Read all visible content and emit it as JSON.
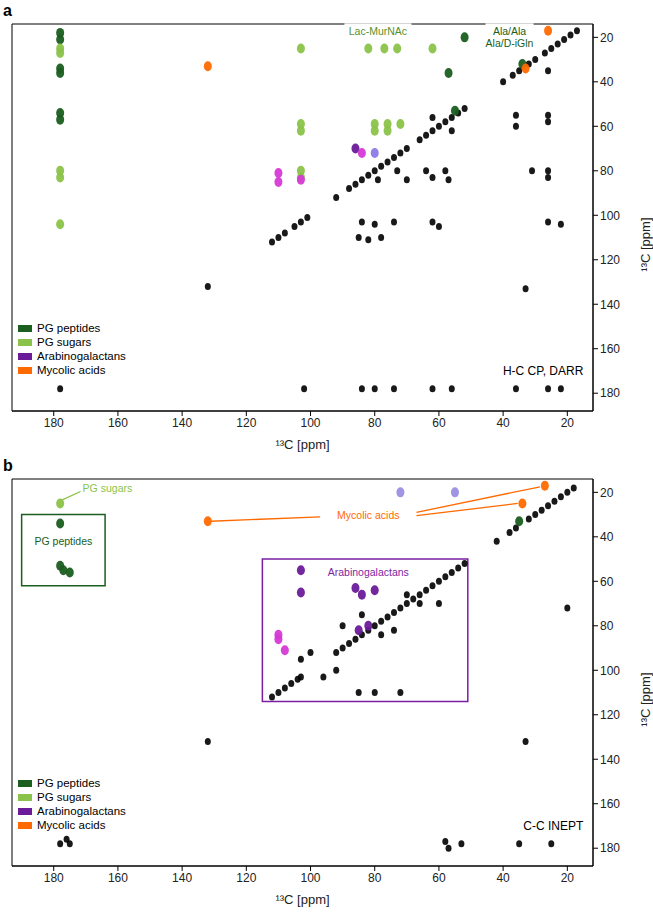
{
  "chart_data": [
    {
      "type": "scatter",
      "panel": "a",
      "title": "H-C CP, DARR",
      "xlabel": "¹³C [ppm]",
      "ylabel": "¹³C [ppm]",
      "xlim": [
        193,
        12
      ],
      "ylim": [
        188,
        14
      ],
      "xticks": [
        180,
        160,
        140,
        120,
        100,
        80,
        60,
        40,
        20
      ],
      "yticks": [
        20,
        40,
        60,
        80,
        100,
        120,
        140,
        160,
        180
      ],
      "legend": "lower left",
      "annotations": [
        {
          "text": "Lac-MurNAc",
          "color": "#5a8f2e"
        },
        {
          "text": "Ala/Ala",
          "color": "#1b5e20"
        },
        {
          "text": "Ala/D-iGln",
          "color": "#1b5e20"
        }
      ],
      "series": [
        {
          "color": "#000000",
          "x": [
            17,
            19,
            21,
            23,
            25,
            27,
            30,
            32,
            35,
            37,
            40,
            52,
            54,
            56,
            58,
            60,
            62,
            64,
            66,
            70,
            72,
            74,
            76,
            78,
            80,
            82,
            84,
            86,
            88,
            92,
            101,
            103,
            105,
            108,
            110,
            112,
            132,
            178,
            62,
            56,
            36,
            36,
            26,
            26,
            26,
            26,
            26,
            31,
            79,
            73,
            70,
            64,
            62,
            58,
            57,
            84,
            80,
            74,
            62,
            60,
            26,
            22,
            85,
            82,
            78,
            33,
            102,
            84,
            80,
            74,
            62,
            56,
            36,
            26,
            22
          ],
          "y": [
            17,
            19,
            21,
            23,
            25,
            27,
            30,
            32,
            35,
            37,
            40,
            52,
            54,
            56,
            58,
            60,
            62,
            64,
            66,
            70,
            72,
            74,
            76,
            78,
            80,
            82,
            84,
            86,
            88,
            92,
            101,
            103,
            105,
            108,
            110,
            112,
            132,
            178,
            56,
            62,
            55,
            60,
            55,
            58,
            35,
            80,
            83,
            80,
            84,
            80,
            84,
            80,
            83,
            80,
            84,
            103,
            104,
            103,
            103,
            105,
            103,
            104,
            110,
            111,
            110,
            133,
            178,
            178,
            178,
            178,
            178,
            178,
            178,
            178,
            178
          ]
        },
        {
          "name": "PG peptides",
          "color": "#1b5e20",
          "x": [
            178,
            178,
            178,
            178,
            178,
            178,
            57,
            52,
            55,
            34
          ],
          "y": [
            18,
            21,
            34,
            36,
            54,
            57,
            36,
            20,
            53,
            32
          ]
        },
        {
          "name": "PG sugars",
          "color": "#8bc34a",
          "x": [
            178,
            178,
            178,
            178,
            178,
            103,
            103,
            103,
            103,
            103,
            82,
            77,
            73,
            62,
            80,
            76,
            72,
            80,
            76
          ],
          "y": [
            25,
            27,
            80,
            83,
            104,
            25,
            59,
            62,
            80,
            83,
            25,
            25,
            25,
            25,
            59,
            59,
            59,
            62,
            62
          ]
        },
        {
          "name": "Arabinogalactans",
          "color": "#6a1b9a",
          "x": [
            110,
            110,
            103,
            86,
            84,
            80
          ],
          "y": [
            81,
            85,
            84,
            70,
            72,
            72
          ],
          "colors": [
            "#d63ad6",
            "#d63ad6",
            "#d63ad6",
            "#6a1b9a",
            "#d63ad6",
            "#8c7ae6"
          ]
        },
        {
          "name": "Mycolic acids",
          "color": "#ff6a00",
          "x": [
            132,
            33,
            26
          ],
          "y": [
            33,
            34,
            17
          ]
        }
      ]
    },
    {
      "type": "scatter",
      "panel": "b",
      "title": "C-C INEPT",
      "xlabel": "¹³C [ppm]",
      "ylabel": "¹³C [ppm]",
      "xlim": [
        193,
        12
      ],
      "ylim": [
        188,
        14
      ],
      "xticks": [
        180,
        160,
        140,
        120,
        100,
        80,
        60,
        40,
        20
      ],
      "yticks": [
        20,
        40,
        60,
        80,
        100,
        120,
        140,
        160,
        180
      ],
      "legend": "lower left",
      "annotations": [
        {
          "text": "PG sugars",
          "color": "#8bc34a"
        },
        {
          "text": "PG peptides",
          "color": "#1b5e20"
        },
        {
          "text": "Mycolic acids",
          "color": "#ff6a00"
        },
        {
          "text": "Arabinogalactans",
          "color": "#7b1fa2"
        }
      ],
      "series": [
        {
          "color": "#000000",
          "x": [
            18,
            20,
            22,
            24,
            26,
            28,
            30,
            32,
            36,
            38,
            42,
            52,
            54,
            56,
            58,
            60,
            62,
            64,
            66,
            68,
            70,
            72,
            74,
            76,
            78,
            80,
            82,
            84,
            86,
            88,
            90,
            92,
            103,
            104,
            106,
            108,
            110,
            112,
            132,
            176,
            178,
            175,
            58,
            57,
            53,
            35,
            25,
            33,
            20,
            103,
            96,
            90,
            84,
            78,
            74,
            70,
            66,
            60,
            85,
            80,
            72,
            100,
            92
          ],
          "y": [
            18,
            20,
            22,
            24,
            26,
            28,
            30,
            32,
            36,
            38,
            42,
            52,
            54,
            56,
            58,
            60,
            62,
            64,
            66,
            68,
            70,
            72,
            74,
            76,
            78,
            80,
            82,
            84,
            86,
            88,
            90,
            92,
            103,
            104,
            106,
            108,
            110,
            112,
            132,
            176,
            178,
            178,
            177,
            180,
            178,
            178,
            178,
            132,
            72,
            95,
            103,
            80,
            75,
            84,
            82,
            66,
            70,
            70,
            110,
            110,
            110,
            92,
            100
          ]
        },
        {
          "name": "PG peptides",
          "color": "#1b5e20",
          "x": [
            178,
            178,
            177,
            175,
            35
          ],
          "y": [
            34,
            53,
            55,
            56,
            33
          ]
        },
        {
          "name": "PG sugars",
          "color": "#8bc34a",
          "x": [
            178
          ],
          "y": [
            25
          ]
        },
        {
          "name": "Arabinogalactans",
          "color": "#6a1b9a",
          "x": [
            103,
            103,
            86,
            84,
            80,
            82,
            85,
            110,
            110,
            108,
            72,
            55
          ],
          "y": [
            55,
            65,
            63,
            66,
            64,
            80,
            82,
            84,
            86,
            91,
            20,
            20
          ],
          "colors": [
            "#6a1b9a",
            "#6a1b9a",
            "#6a1b9a",
            "#6a1b9a",
            "#6a1b9a",
            "#6a1b9a",
            "#6a1b9a",
            "#d63ad6",
            "#d63ad6",
            "#d63ad6",
            "#9b8fe0",
            "#9b8fe0"
          ]
        },
        {
          "name": "Mycolic acids",
          "color": "#ff6a00",
          "x": [
            132,
            27,
            34
          ],
          "y": [
            33,
            17,
            25
          ]
        }
      ]
    }
  ]
}
